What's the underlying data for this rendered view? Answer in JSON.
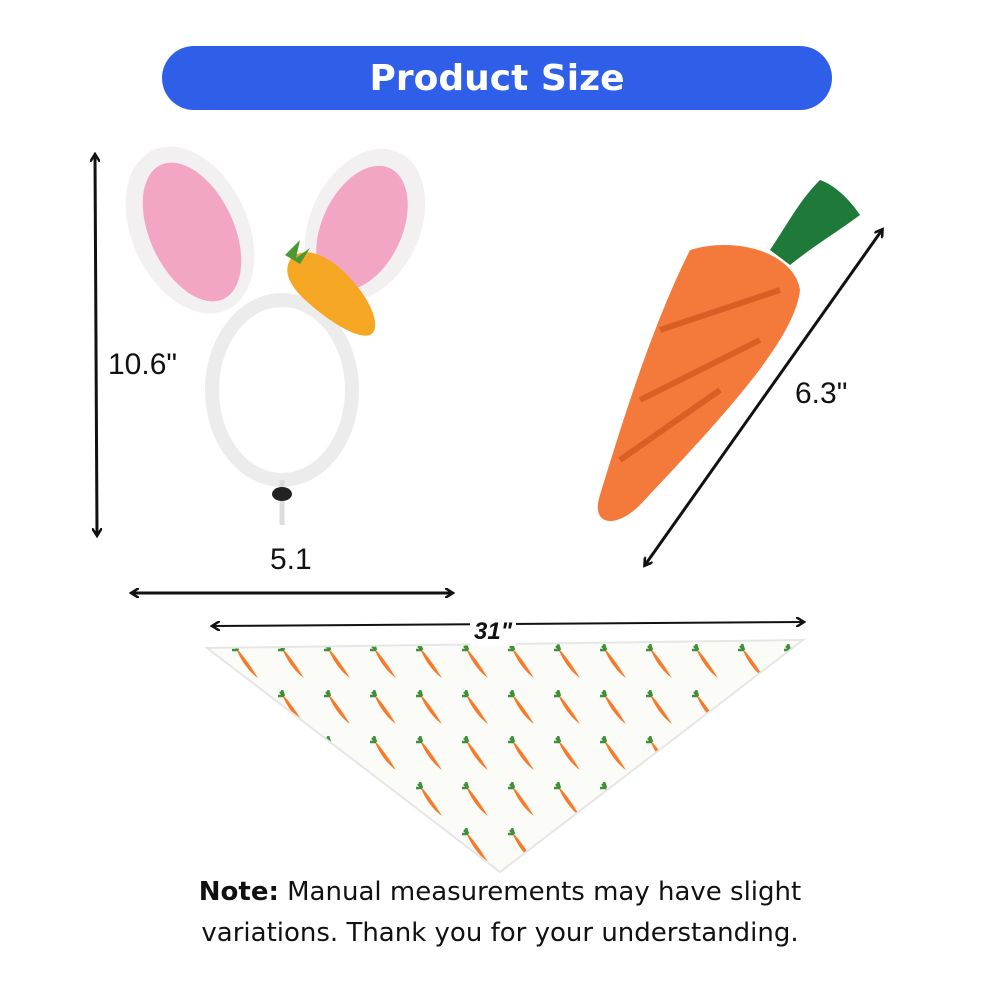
{
  "header": {
    "title": "Product Size"
  },
  "dimensions": {
    "headband_height": "10.6\"",
    "headband_width": "5.1",
    "carrot_length": "6.3\"",
    "bandana_width": "31\""
  },
  "note": {
    "label": "Note:",
    "lines": [
      "Manual measurements may have slight",
      "variations. Thank you for your understanding."
    ]
  }
}
